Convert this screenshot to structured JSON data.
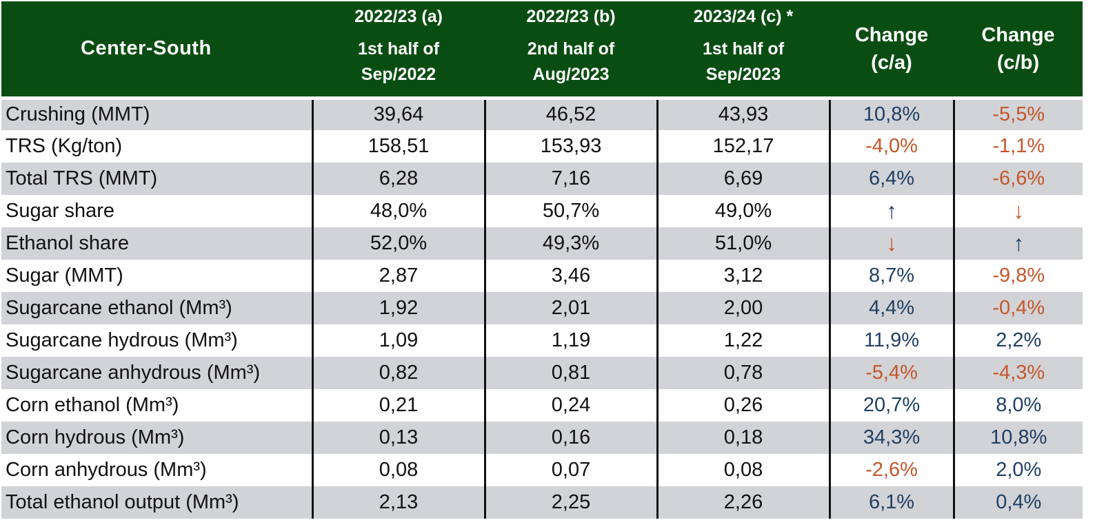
{
  "header": {
    "corner": "Center-South",
    "col1_top": "2022/23 (a)",
    "col1_sub1": "1st half of",
    "col1_sub2": "Sep/2022",
    "col2_top": "2022/23 (b)",
    "col2_sub1": "2nd half of",
    "col2_sub2": "Aug/2023",
    "col3_top": "2023/24 (c) *",
    "col3_sub1": "1st half of",
    "col3_sub2": "Sep/2023",
    "col4_l1": "Change",
    "col4_l2": "(c/a)",
    "col5_l1": "Change",
    "col5_l2": "(c/b)"
  },
  "colors": {
    "header_bg": "#0a4d12",
    "band": "#d2d3d6",
    "positive": "#1f3f66",
    "negative": "#c5562b"
  },
  "rows": [
    {
      "label": "Crushing (MMT)",
      "a": "39,64",
      "b": "46,52",
      "c": "43,93",
      "ca": "10,8%",
      "cb": "-5,5%"
    },
    {
      "label": "TRS (Kg/ton)",
      "a": "158,51",
      "b": "153,93",
      "c": "152,17",
      "ca": "-4,0%",
      "cb": "-1,1%"
    },
    {
      "label": "Total TRS (MMT)",
      "a": "6,28",
      "b": "7,16",
      "c": "6,69",
      "ca": "6,4%",
      "cb": "-6,6%"
    },
    {
      "label": "Sugar share",
      "a": "48,0%",
      "b": "50,7%",
      "c": "49,0%",
      "ca": "↑",
      "cb": "↓"
    },
    {
      "label": "Ethanol share",
      "a": "52,0%",
      "b": "49,3%",
      "c": "51,0%",
      "ca": "↓",
      "cb": "↑"
    },
    {
      "label": "Sugar (MMT)",
      "a": "2,87",
      "b": "3,46",
      "c": "3,12",
      "ca": "8,7%",
      "cb": "-9,8%"
    },
    {
      "label": "Sugarcane ethanol (Mm³)",
      "a": "1,92",
      "b": "2,01",
      "c": "2,00",
      "ca": "4,4%",
      "cb": "-0,4%"
    },
    {
      "label": "Sugarcane hydrous (Mm³)",
      "a": "1,09",
      "b": "1,19",
      "c": "1,22",
      "ca": "11,9%",
      "cb": "2,2%"
    },
    {
      "label": "Sugarcane anhydrous (Mm³)",
      "a": "0,82",
      "b": "0,81",
      "c": "0,78",
      "ca": "-5,4%",
      "cb": "-4,3%"
    },
    {
      "label": "Corn ethanol (Mm³)",
      "a": "0,21",
      "b": "0,24",
      "c": "0,26",
      "ca": "20,7%",
      "cb": "8,0%"
    },
    {
      "label": "Corn hydrous (Mm³)",
      "a": "0,13",
      "b": "0,16",
      "c": "0,18",
      "ca": "34,3%",
      "cb": "10,8%"
    },
    {
      "label": "Corn anhydrous (Mm³)",
      "a": "0,08",
      "b": "0,07",
      "c": "0,08",
      "ca": "-2,6%",
      "cb": "2,0%"
    },
    {
      "label": "Total ethanol output (Mm³)",
      "a": "2,13",
      "b": "2,25",
      "c": "2,26",
      "ca": "6,1%",
      "cb": "0,4%"
    }
  ]
}
